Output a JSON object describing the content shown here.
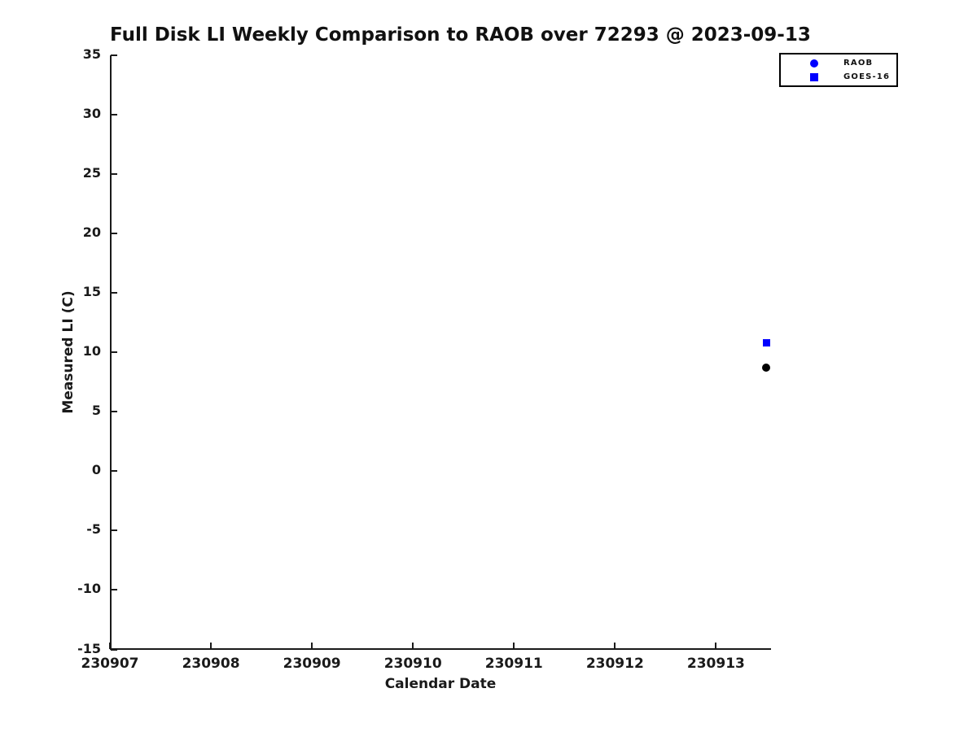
{
  "chart_data": {
    "type": "scatter",
    "title": "Full Disk LI Weekly Comparison to RAOB over 72293 @ 2023-09-13",
    "xlabel": "Calendar Date",
    "ylabel": "Measured LI (C)",
    "xlim": [
      230907,
      230913.545
    ],
    "ylim": [
      -15,
      35
    ],
    "x_ticks": [
      230907,
      230908,
      230909,
      230910,
      230911,
      230912,
      230913
    ],
    "y_ticks": [
      35,
      30,
      25,
      20,
      15,
      10,
      5,
      0,
      -5,
      -10,
      -15
    ],
    "grid": false,
    "axis_color": "#1a1a1a",
    "background_color": "#ffffff",
    "legend": {
      "position": "top-right",
      "border_color": "#000000",
      "entries": [
        {
          "label": "RAOB",
          "marker": "circle",
          "color": "#0000ff"
        },
        {
          "label": "GOES-16",
          "marker": "square",
          "color": "#0000ff"
        }
      ]
    },
    "series": [
      {
        "name": "RAOB",
        "marker": "circle",
        "color": "#000000",
        "marker_size": 10,
        "points": [
          {
            "x": 230913.5,
            "y": 8.7
          }
        ]
      },
      {
        "name": "GOES-16",
        "marker": "square",
        "color": "#0000ff",
        "marker_size": 9,
        "points": [
          {
            "x": 230913.5,
            "y": 10.8
          }
        ]
      }
    ]
  }
}
